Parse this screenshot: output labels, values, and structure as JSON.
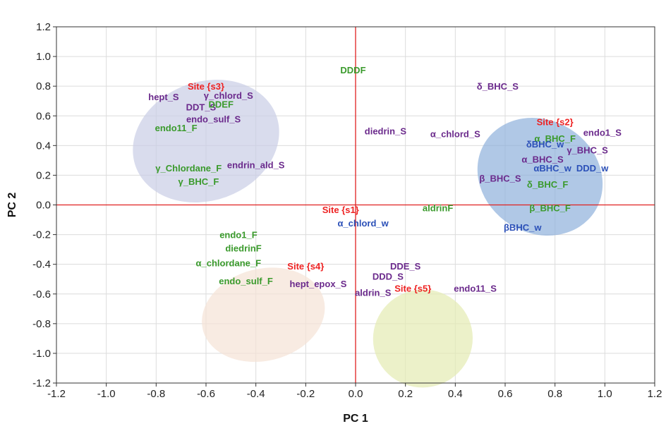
{
  "chart_data": {
    "type": "scatter",
    "xlabel": "PC 1",
    "ylabel": "PC 2",
    "xlim": [
      -1.2,
      1.2
    ],
    "ylim": [
      -1.2,
      1.2
    ],
    "x_ticks": [
      "-1.2",
      "-1.0",
      "-0.8",
      "-0.6",
      "-0.4",
      "-0.2",
      "0.0",
      "0.2",
      "0.4",
      "0.6",
      "0.8",
      "1.0",
      "1.2"
    ],
    "y_ticks": [
      "1.2",
      "1.0",
      "0.8",
      "0.6",
      "0.4",
      "0.2",
      "0.0",
      "-0.2",
      "-0.4",
      "-0.6",
      "-0.8",
      "-1.0",
      "-1.2"
    ],
    "grid": true,
    "colors": {
      "site": "#ee2222",
      "green": "#3a9a2c",
      "purple": "#6b2a8c",
      "blue": "#2b50b8",
      "axis_line": "#e02020",
      "ellipse_s3": "#c9cde6",
      "ellipse_s2": "#8fb0dc",
      "ellipse_s4": "#f5e3d6",
      "ellipse_s5": "#e4ebb2"
    },
    "clusters": [
      {
        "color_key": "ellipse_s3",
        "cx": -0.6,
        "cy": 0.43,
        "rx": 0.3,
        "ry": 0.4,
        "angle": -20
      },
      {
        "color_key": "ellipse_s2",
        "cx": 0.74,
        "cy": 0.19,
        "rx": 0.26,
        "ry": 0.38,
        "angle": 32
      },
      {
        "color_key": "ellipse_s4",
        "cx": -0.37,
        "cy": -0.74,
        "rx": 0.25,
        "ry": 0.31,
        "angle": -14
      },
      {
        "color_key": "ellipse_s5",
        "cx": 0.27,
        "cy": -0.9,
        "rx": 0.2,
        "ry": 0.33,
        "angle": -12
      }
    ],
    "points": [
      {
        "label": "Site {s3}",
        "x": -0.6,
        "y": 0.8,
        "color": "site"
      },
      {
        "label": "hept_S",
        "x": -0.77,
        "y": 0.73,
        "color": "purple"
      },
      {
        "label": "γ_chlord_S",
        "x": -0.51,
        "y": 0.74,
        "color": "purple"
      },
      {
        "label": "DDT_S",
        "x": -0.62,
        "y": 0.66,
        "color": "purple"
      },
      {
        "label": "DDEF",
        "x": -0.54,
        "y": 0.68,
        "color": "green"
      },
      {
        "label": "endo_sulf_S",
        "x": -0.57,
        "y": 0.58,
        "color": "purple"
      },
      {
        "label": "endo11_F",
        "x": -0.72,
        "y": 0.52,
        "color": "green"
      },
      {
        "label": "γ_Chlordane_F",
        "x": -0.67,
        "y": 0.25,
        "color": "green"
      },
      {
        "label": "endrin_ald_S",
        "x": -0.4,
        "y": 0.27,
        "color": "purple"
      },
      {
        "label": "γ_BHC_F",
        "x": -0.63,
        "y": 0.16,
        "color": "green"
      },
      {
        "label": "DDDF",
        "x": -0.01,
        "y": 0.91,
        "color": "green"
      },
      {
        "label": "δ_BHC_S",
        "x": 0.57,
        "y": 0.8,
        "color": "purple"
      },
      {
        "label": "diedrin_S",
        "x": 0.12,
        "y": 0.5,
        "color": "purple"
      },
      {
        "label": "α_chlord_S",
        "x": 0.4,
        "y": 0.48,
        "color": "purple"
      },
      {
        "label": "Site {s2}",
        "x": 0.8,
        "y": 0.56,
        "color": "site"
      },
      {
        "label": "α_BHC_F",
        "x": 0.8,
        "y": 0.45,
        "color": "green"
      },
      {
        "label": "endo1_S",
        "x": 0.99,
        "y": 0.49,
        "color": "purple"
      },
      {
        "label": "δBHC_w",
        "x": 0.76,
        "y": 0.41,
        "color": "blue"
      },
      {
        "label": "γ_BHC_S",
        "x": 0.93,
        "y": 0.37,
        "color": "purple"
      },
      {
        "label": "α_BHC_S",
        "x": 0.75,
        "y": 0.31,
        "color": "purple"
      },
      {
        "label": "αBHC_w",
        "x": 0.79,
        "y": 0.25,
        "color": "blue"
      },
      {
        "label": "DDD_w",
        "x": 0.95,
        "y": 0.25,
        "color": "blue"
      },
      {
        "label": "β_BHC_S",
        "x": 0.58,
        "y": 0.18,
        "color": "purple"
      },
      {
        "label": "δ_BHC_F",
        "x": 0.77,
        "y": 0.14,
        "color": "green"
      },
      {
        "label": "Site {s1}",
        "x": -0.06,
        "y": -0.03,
        "color": "site"
      },
      {
        "label": "aldrinF",
        "x": 0.33,
        "y": -0.02,
        "color": "green"
      },
      {
        "label": "β_BHC_F",
        "x": 0.78,
        "y": -0.02,
        "color": "green"
      },
      {
        "label": "α_chlord_w",
        "x": 0.03,
        "y": -0.12,
        "color": "blue"
      },
      {
        "label": "βBHC_w",
        "x": 0.67,
        "y": -0.15,
        "color": "blue"
      },
      {
        "label": "endo1_F",
        "x": -0.47,
        "y": -0.2,
        "color": "green"
      },
      {
        "label": "diedrinF",
        "x": -0.45,
        "y": -0.29,
        "color": "green"
      },
      {
        "label": "α_chlordane_F",
        "x": -0.51,
        "y": -0.39,
        "color": "green"
      },
      {
        "label": "Site {s4}",
        "x": -0.2,
        "y": -0.41,
        "color": "site"
      },
      {
        "label": "endo_sulf_F",
        "x": -0.44,
        "y": -0.51,
        "color": "green"
      },
      {
        "label": "hept_epox_S",
        "x": -0.15,
        "y": -0.53,
        "color": "purple"
      },
      {
        "label": "DDE_S",
        "x": 0.2,
        "y": -0.41,
        "color": "purple"
      },
      {
        "label": "DDD_S",
        "x": 0.13,
        "y": -0.48,
        "color": "purple"
      },
      {
        "label": "aldrin_S",
        "x": 0.07,
        "y": -0.59,
        "color": "purple"
      },
      {
        "label": "Site {s5}",
        "x": 0.23,
        "y": -0.56,
        "color": "site"
      },
      {
        "label": "endo11_S",
        "x": 0.48,
        "y": -0.56,
        "color": "purple"
      }
    ]
  }
}
